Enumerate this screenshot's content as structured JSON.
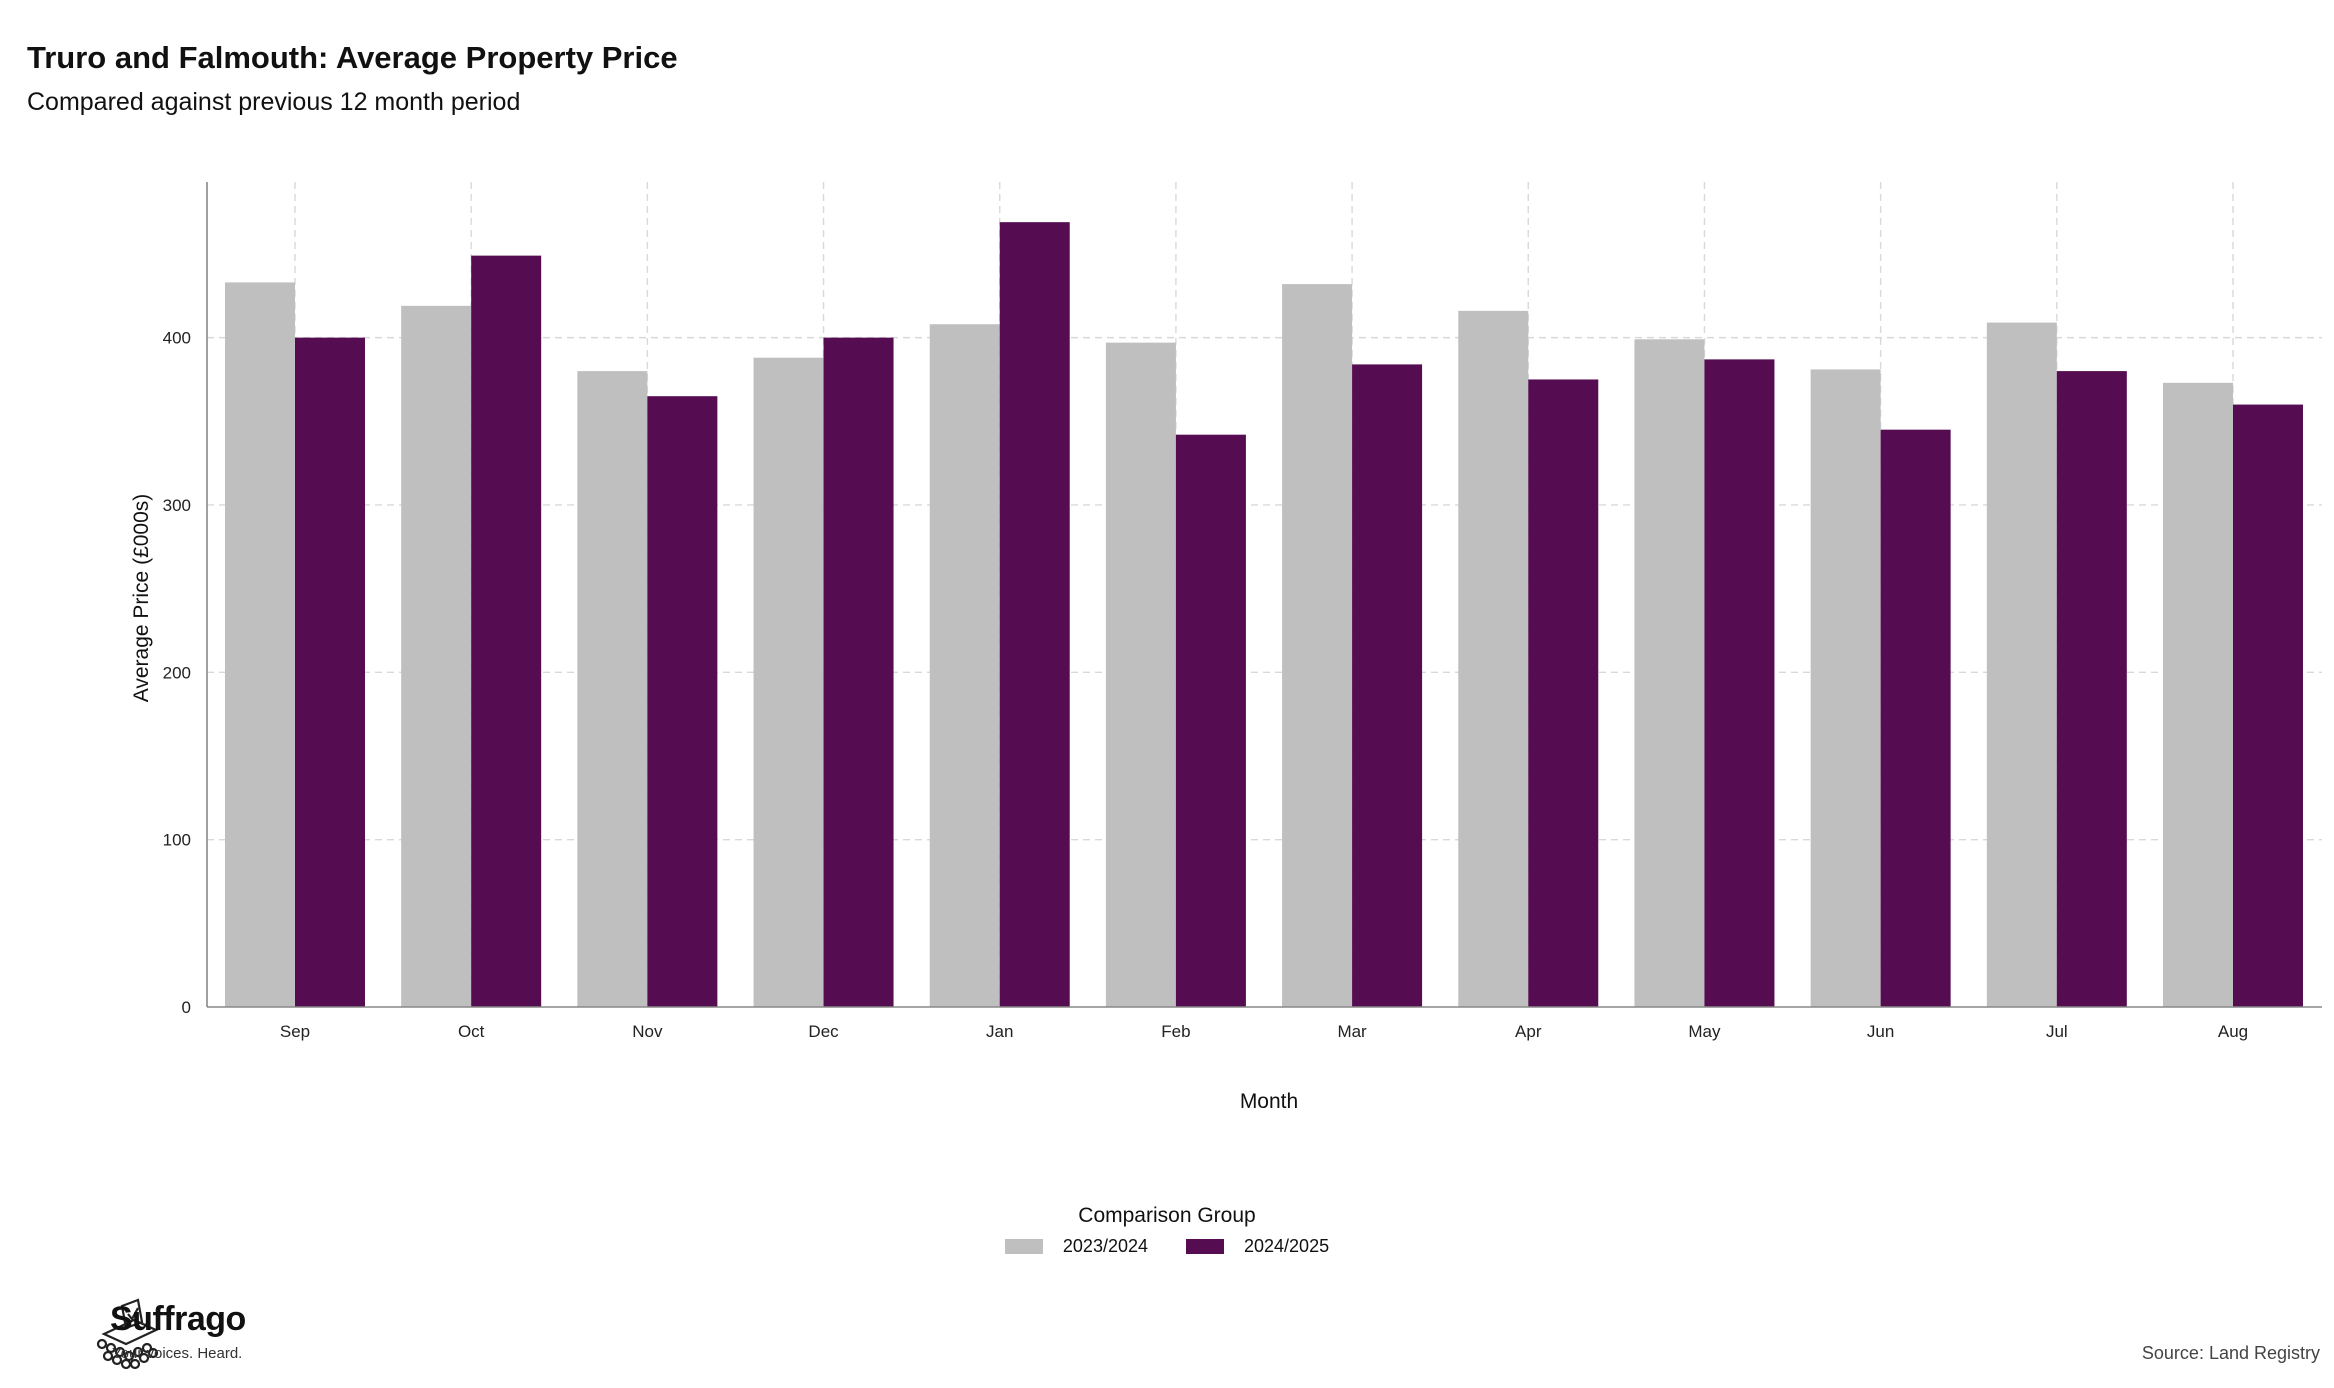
{
  "header": {
    "title": "Truro and Falmouth: Average Property Price",
    "subtitle": "Compared against previous 12 month period"
  },
  "chart_data": {
    "type": "bar",
    "title": "Truro and Falmouth: Average Property Price",
    "subtitle": "Compared against previous 12 month period",
    "xlabel": "Month",
    "ylabel": "Average Price (£000s)",
    "categories": [
      "Sep",
      "Oct",
      "Nov",
      "Dec",
      "Jan",
      "Feb",
      "Mar",
      "Apr",
      "May",
      "Jun",
      "Jul",
      "Aug"
    ],
    "series": [
      {
        "name": "2023/2024",
        "color": "#bfbfbf",
        "values": [
          433,
          419,
          380,
          388,
          408,
          397,
          432,
          416,
          399,
          381,
          409,
          373
        ]
      },
      {
        "name": "2024/2025",
        "color": "#550c51",
        "values": [
          400,
          449,
          365,
          400,
          469,
          342,
          384,
          375,
          387,
          345,
          380,
          360
        ]
      }
    ],
    "ylim": [
      0,
      493
    ],
    "yticks": [
      0,
      100,
      200,
      300,
      400
    ],
    "grid": true,
    "legend_title": "Comparison Group",
    "legend_position": "bottom"
  },
  "footer": {
    "brand_name": "Suffrago",
    "brand_tagline": "Your voices. Heard.",
    "source": "Source: Land Registry"
  }
}
